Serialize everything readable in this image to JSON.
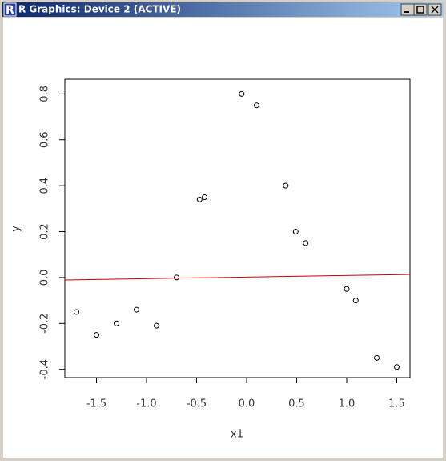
{
  "window": {
    "title": "R Graphics: Device 2 (ACTIVE)"
  },
  "chart_data": {
    "type": "scatter",
    "x": [
      -1.7,
      -1.5,
      -1.3,
      -1.1,
      -0.9,
      -0.7,
      -0.47,
      -0.42,
      -0.05,
      0.1,
      0.39,
      0.49,
      0.59,
      1.0,
      1.09,
      1.3,
      1.5
    ],
    "y": [
      -0.15,
      -0.25,
      -0.2,
      -0.14,
      -0.21,
      0.0,
      0.34,
      0.35,
      0.8,
      0.75,
      0.4,
      0.2,
      0.15,
      -0.05,
      -0.1,
      -0.35,
      -0.39
    ],
    "point_color": "#000000",
    "xlabel": "x1",
    "ylabel": "y",
    "xlim": [
      -1.816,
      1.632
    ],
    "ylim": [
      -0.436,
      0.864
    ],
    "xticks": [
      -1.5,
      {
        "value": -1,
        "label": "-1.0"
      },
      -0.5,
      {
        "value": 0,
        "label": "0.0"
      },
      0.5,
      {
        "value": 1,
        "label": "1.0"
      },
      1.5
    ],
    "yticks": [
      -0.4,
      -0.2,
      {
        "value": 0,
        "label": "0.0"
      },
      0.2,
      0.4,
      0.6,
      0.8
    ],
    "abline": {
      "intercept": 0.002,
      "slope": 0.007,
      "color": "#cc0000"
    }
  }
}
